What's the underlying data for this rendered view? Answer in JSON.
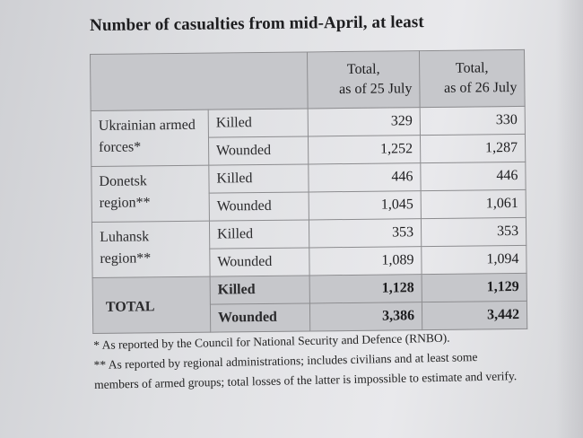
{
  "title": "Number of casualties from mid-April, at least",
  "table": {
    "col1_header_line1": "Total,",
    "col1_header_line2": "as of 25 July",
    "col2_header_line1": "Total,",
    "col2_header_line2": "as of 26 July",
    "rows": [
      {
        "region": "Ukrainian armed forces*",
        "kind": "Killed",
        "jul25": "329",
        "jul26": "330"
      },
      {
        "region": "",
        "kind": "Wounded",
        "jul25": "1,252",
        "jul26": "1,287"
      },
      {
        "region": "Donetsk region**",
        "kind": "Killed",
        "jul25": "446",
        "jul26": "446"
      },
      {
        "region": "",
        "kind": "Wounded",
        "jul25": "1,045",
        "jul26": "1,061"
      },
      {
        "region": "Luhansk region**",
        "kind": "Killed",
        "jul25": "353",
        "jul26": "353"
      },
      {
        "region": "",
        "kind": "Wounded",
        "jul25": "1,089",
        "jul26": "1,094"
      },
      {
        "region": "TOTAL",
        "kind": "Killed",
        "jul25": "1,128",
        "jul26": "1,129"
      },
      {
        "region": "",
        "kind": "Wounded",
        "jul25": "3,386",
        "jul26": "3,442"
      }
    ]
  },
  "footnotes": {
    "note1": "* As reported by the Council for National Security and Defence (RNBO).",
    "note2": "** As reported by regional administrations; includes civilians and at least some members of armed groups; total losses of the latter is impossible to estimate and verify."
  }
}
